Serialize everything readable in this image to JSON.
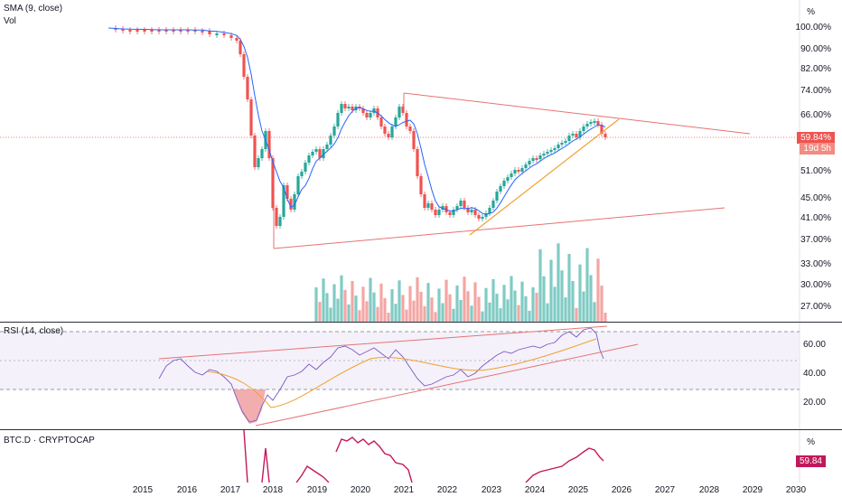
{
  "main_pane": {
    "label_sma": "SMA (9, close)",
    "label_vol": "Vol",
    "axis_unit": "%",
    "axis_ticks": [
      "100.00%",
      "90.00%",
      "82.00%",
      "74.00%",
      "66.00%",
      "51.00%",
      "45.00%",
      "41.00%",
      "37.00%",
      "33.00%",
      "30.00%",
      "27.00%"
    ],
    "price_badge": "59.84%",
    "countdown_badge": "19d 5h",
    "colors": {
      "up": "#26a69a",
      "down": "#ef5350",
      "sma": "#2962ff",
      "trend": "#f0a030",
      "triangle": "#e57373"
    }
  },
  "rsi_pane": {
    "label": "RSI (14, close)",
    "axis_ticks": [
      "60.00",
      "40.00",
      "20.00"
    ],
    "colors": {
      "rsi": "#7e57c2",
      "ma": "#f0a030",
      "band": "#ede7f6",
      "lines": "#e57373"
    }
  },
  "dom_pane": {
    "label": "BTC.D · CRYPTOCAP",
    "axis_unit": "%",
    "badge": "59.84",
    "colors": {
      "line": "#c2185b"
    }
  },
  "time_axis": {
    "labels": [
      "2015",
      "2016",
      "2017",
      "2018",
      "2019",
      "2020",
      "2021",
      "2022",
      "2023",
      "2024",
      "2025",
      "2026",
      "2027",
      "2028",
      "2029",
      "2030"
    ]
  }
}
